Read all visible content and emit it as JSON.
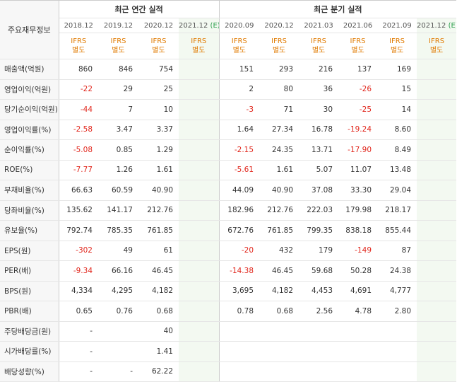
{
  "header": {
    "corner_label": "주요재무정보",
    "annual_title": "최근 연간 실적",
    "quarter_title": "최근 분기 실적",
    "ifrs_line1": "IFRS",
    "ifrs_line2": "별도"
  },
  "periods": [
    {
      "label": "2018.12",
      "est": ""
    },
    {
      "label": "2019.12",
      "est": ""
    },
    {
      "label": "2020.12",
      "est": ""
    },
    {
      "label": "2021.12",
      "est": "(E)"
    },
    {
      "label": "2020.09",
      "est": ""
    },
    {
      "label": "2020.12",
      "est": ""
    },
    {
      "label": "2021.03",
      "est": ""
    },
    {
      "label": "2021.06",
      "est": ""
    },
    {
      "label": "2021.09",
      "est": ""
    },
    {
      "label": "2021.12",
      "est": "(E)"
    }
  ],
  "rows": [
    {
      "label": "매출액(억원)",
      "values": [
        "860",
        "846",
        "754",
        "",
        "151",
        "293",
        "216",
        "137",
        "169",
        ""
      ]
    },
    {
      "label": "영업이익(억원)",
      "values": [
        "-22",
        "29",
        "25",
        "",
        "2",
        "80",
        "36",
        "-26",
        "15",
        ""
      ]
    },
    {
      "label": "당기순이익(억원)",
      "values": [
        "-44",
        "7",
        "10",
        "",
        "-3",
        "71",
        "30",
        "-25",
        "14",
        ""
      ]
    },
    {
      "label": "영업이익률(%)",
      "values": [
        "-2.58",
        "3.47",
        "3.37",
        "",
        "1.64",
        "27.34",
        "16.78",
        "-19.24",
        "8.60",
        ""
      ]
    },
    {
      "label": "순이익률(%)",
      "values": [
        "-5.08",
        "0.85",
        "1.29",
        "",
        "-2.15",
        "24.35",
        "13.71",
        "-17.90",
        "8.49",
        ""
      ]
    },
    {
      "label": "ROE(%)",
      "values": [
        "-7.77",
        "1.26",
        "1.61",
        "",
        "-5.61",
        "1.61",
        "5.07",
        "11.07",
        "13.48",
        ""
      ]
    },
    {
      "label": "부채비율(%)",
      "values": [
        "66.63",
        "60.59",
        "40.90",
        "",
        "44.09",
        "40.90",
        "37.08",
        "33.30",
        "29.04",
        ""
      ]
    },
    {
      "label": "당좌비율(%)",
      "values": [
        "135.62",
        "141.17",
        "212.76",
        "",
        "182.96",
        "212.76",
        "222.03",
        "179.98",
        "218.17",
        ""
      ]
    },
    {
      "label": "유보율(%)",
      "values": [
        "792.74",
        "785.35",
        "761.85",
        "",
        "672.76",
        "761.85",
        "799.35",
        "838.18",
        "855.44",
        ""
      ]
    },
    {
      "label": "EPS(원)",
      "values": [
        "-302",
        "49",
        "61",
        "",
        "-20",
        "432",
        "179",
        "-149",
        "87",
        ""
      ]
    },
    {
      "label": "PER(배)",
      "values": [
        "-9.34",
        "66.16",
        "46.45",
        "",
        "-14.38",
        "46.45",
        "59.68",
        "50.28",
        "24.38",
        ""
      ]
    },
    {
      "label": "BPS(원)",
      "values": [
        "4,334",
        "4,295",
        "4,182",
        "",
        "3,695",
        "4,182",
        "4,453",
        "4,691",
        "4,777",
        ""
      ]
    },
    {
      "label": "PBR(배)",
      "values": [
        "0.65",
        "0.76",
        "0.68",
        "",
        "0.78",
        "0.68",
        "2.56",
        "4.78",
        "2.80",
        ""
      ]
    },
    {
      "label": "주당배당금(원)",
      "values": [
        "-",
        "",
        "40",
        "",
        "",
        "",
        "",
        "",
        "",
        ""
      ]
    },
    {
      "label": "시가배당률(%)",
      "values": [
        "-",
        "",
        "1.41",
        "",
        "",
        "",
        "",
        "",
        "",
        ""
      ]
    },
    {
      "label": "배당성향(%)",
      "values": [
        "-",
        "-",
        "62.22",
        "",
        "",
        "",
        "",
        "",
        "",
        ""
      ]
    }
  ],
  "colors": {
    "negative": "#e1261c",
    "ifrs": "#e07a00",
    "estimate": "#2a9d4a",
    "shade": "#f3f9f1"
  }
}
